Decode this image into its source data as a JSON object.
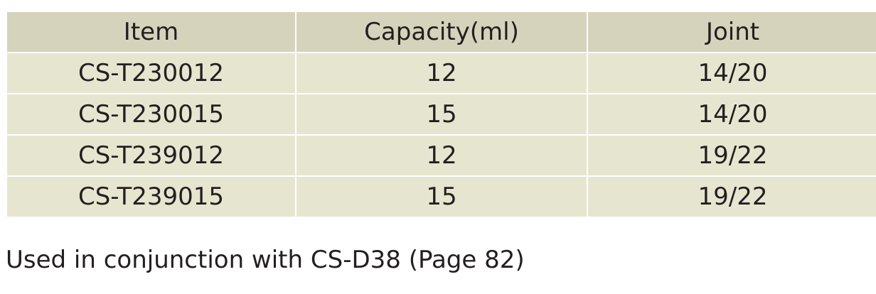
{
  "table": {
    "header": [
      "Item",
      "Capacity(ml)",
      "Joint"
    ],
    "rows": [
      [
        "CS-T230012",
        "12",
        "14/20"
      ],
      [
        "CS-T230015",
        "15",
        "14/20"
      ],
      [
        "CS-T239012",
        "12",
        "19/22"
      ],
      [
        "CS-T239015",
        "15",
        "19/22"
      ]
    ]
  },
  "note": "Used in conjunction with CS-D38 (Page 82)"
}
